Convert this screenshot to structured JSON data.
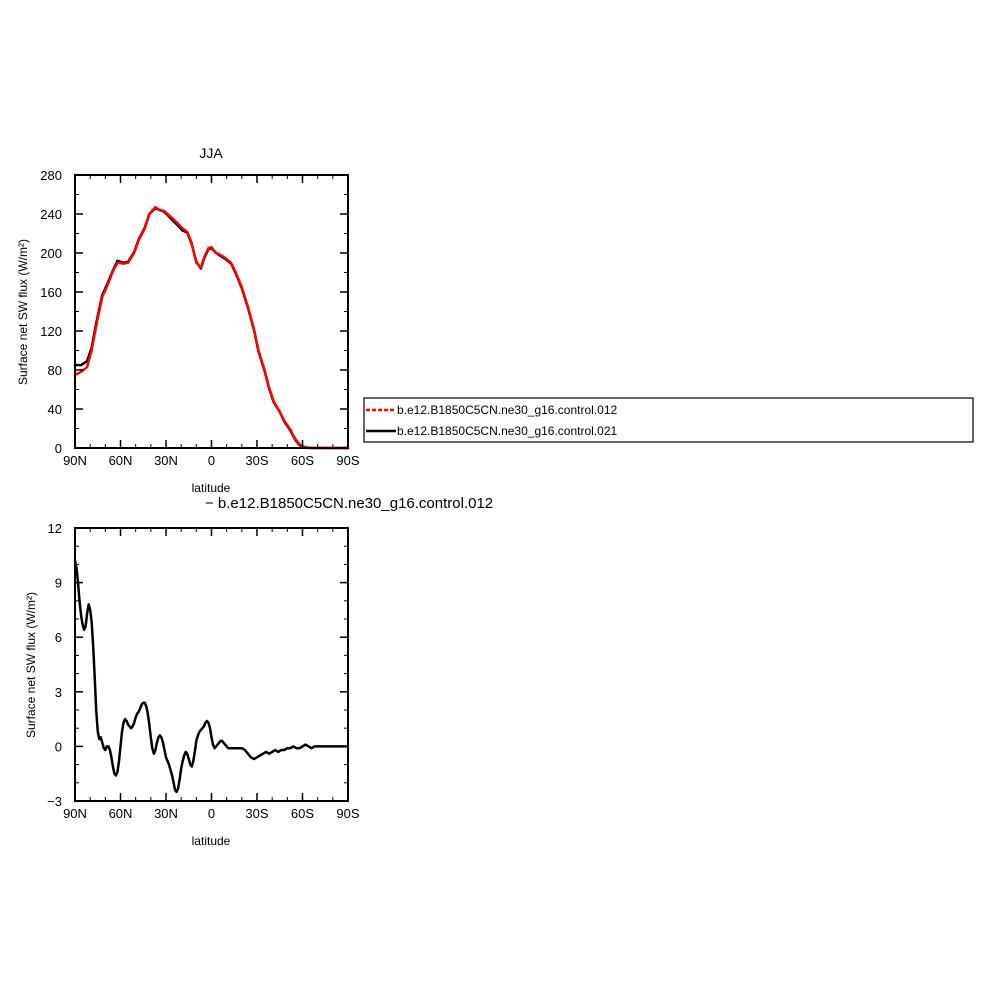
{
  "chart_data": [
    {
      "type": "line",
      "title": "JJA",
      "xlabel": "latitude",
      "ylabel": "Surface net SW flux (W/m²)",
      "xlim": [
        90,
        -90
      ],
      "ylim": [
        0,
        280
      ],
      "x_ticks": [
        {
          "value": 90,
          "label": "90N"
        },
        {
          "value": 60,
          "label": "60N"
        },
        {
          "value": 30,
          "label": "30N"
        },
        {
          "value": 0,
          "label": "0"
        },
        {
          "value": -30,
          "label": "30S"
        },
        {
          "value": -60,
          "label": "60S"
        },
        {
          "value": -90,
          "label": "90S"
        }
      ],
      "y_ticks": [
        {
          "value": 0,
          "label": "0"
        },
        {
          "value": 40,
          "label": "40"
        },
        {
          "value": 80,
          "label": "80"
        },
        {
          "value": 120,
          "label": "120"
        },
        {
          "value": 160,
          "label": "160"
        },
        {
          "value": 200,
          "label": "200"
        },
        {
          "value": 240,
          "label": "240"
        },
        {
          "value": 280,
          "label": "280"
        }
      ],
      "x": [
        90,
        86,
        82,
        79,
        76,
        72,
        69,
        65,
        62,
        58,
        55,
        51,
        48,
        44,
        41,
        37,
        34,
        31,
        29,
        26,
        22,
        19,
        16,
        13,
        10,
        7,
        5,
        2,
        0,
        -3,
        -6,
        -9,
        -13,
        -16,
        -20,
        -24,
        -28,
        -31,
        -35,
        -38,
        -41,
        -45,
        -48,
        -52,
        -55,
        -58,
        -61,
        -63,
        -65,
        -67,
        -69,
        -72,
        -75,
        -90
      ],
      "series": [
        {
          "name": "b.e12.B1850C5CN.ne30_g16.control.012",
          "color": "#ff0000",
          "dashed": true,
          "values": [
            75,
            78,
            83,
            100,
            125,
            155,
            165,
            181,
            190,
            189,
            190,
            200,
            213,
            225,
            240,
            247,
            244,
            243,
            240,
            236,
            230,
            225,
            222,
            210,
            190,
            185,
            195,
            205,
            206,
            200,
            198,
            195,
            190,
            180,
            165,
            145,
            122,
            100,
            80,
            62,
            48,
            37,
            28,
            19,
            10,
            4,
            1,
            0.5,
            0,
            0,
            0,
            0,
            0,
            0
          ]
        },
        {
          "name": "b.e12.B1850C5CN.ne30_g16.control.021",
          "color": "#000000",
          "dashed": false,
          "values": [
            85,
            85,
            89,
            103,
            128,
            157,
            167,
            182,
            192,
            190,
            191,
            201,
            214,
            226,
            240,
            246,
            244,
            242,
            239,
            234,
            228,
            223,
            221,
            209,
            191,
            184,
            194,
            204,
            205,
            200,
            197,
            194,
            189,
            179,
            164,
            144,
            121,
            99,
            79,
            61,
            47,
            37,
            27,
            18,
            9,
            3,
            1,
            0.5,
            0,
            0,
            0,
            0,
            0,
            0
          ]
        }
      ],
      "legend": {
        "placement": "right",
        "entries": [
          "b.e12.B1850C5CN.ne30_g16.control.012",
          "b.e12.B1850C5CN.ne30_g16.control.021"
        ]
      },
      "grid": false
    },
    {
      "type": "line",
      "title": "",
      "subtitle": "− b.e12.B1850C5CN.ne30_g16.control.012",
      "xlabel": "latitude",
      "ylabel": "Surface net SW flux (W/m²)",
      "xlim": [
        90,
        -90
      ],
      "ylim": [
        -3,
        12
      ],
      "x_ticks": [
        {
          "value": 90,
          "label": "90N"
        },
        {
          "value": 60,
          "label": "60N"
        },
        {
          "value": 30,
          "label": "30N"
        },
        {
          "value": 0,
          "label": "0"
        },
        {
          "value": -30,
          "label": "30S"
        },
        {
          "value": -60,
          "label": "60S"
        },
        {
          "value": -90,
          "label": "90S"
        }
      ],
      "y_ticks": [
        {
          "value": -3,
          "label": "−3"
        },
        {
          "value": 0,
          "label": "0"
        },
        {
          "value": 3,
          "label": "3"
        },
        {
          "value": 6,
          "label": "6"
        },
        {
          "value": 9,
          "label": "9"
        },
        {
          "value": 12,
          "label": "12"
        }
      ],
      "x": [
        90,
        89,
        88,
        87,
        86,
        85,
        84,
        83,
        82,
        81,
        80,
        79,
        78,
        77,
        76,
        75,
        74,
        73,
        72,
        71,
        70,
        69,
        68,
        67,
        66,
        65,
        64,
        63,
        62,
        61,
        60,
        59,
        58,
        57,
        56,
        55,
        54,
        53,
        52,
        51,
        50,
        49,
        48,
        47,
        46,
        45,
        44,
        43,
        42,
        41,
        40,
        39,
        38,
        37,
        36,
        35,
        34,
        33,
        32,
        31,
        30,
        29,
        28,
        27,
        26,
        25,
        24,
        23,
        22,
        21,
        20,
        19,
        18,
        17,
        16,
        15,
        14,
        13,
        12,
        11,
        10,
        9,
        8,
        7,
        6,
        5,
        4,
        3,
        2,
        1,
        0,
        -1,
        -2,
        -3,
        -4,
        -5,
        -6,
        -7,
        -8,
        -9,
        -10,
        -11,
        -12,
        -13,
        -14,
        -15,
        -16,
        -17,
        -18,
        -19,
        -20,
        -22,
        -24,
        -26,
        -28,
        -30,
        -32,
        -34,
        -36,
        -38,
        -40,
        -42,
        -44,
        -46,
        -48,
        -50,
        -52,
        -54,
        -56,
        -58,
        -60,
        -62,
        -64,
        -66,
        -68,
        -70,
        -75,
        -80,
        -85,
        -90
      ],
      "series": [
        {
          "name": "",
          "color": "#000000",
          "values": [
            10.2,
            9.8,
            9.0,
            8.0,
            7.2,
            6.7,
            6.4,
            6.6,
            7.3,
            7.8,
            7.5,
            6.8,
            5.5,
            3.8,
            2.0,
            0.8,
            0.4,
            0.5,
            0.2,
            -0.1,
            -0.2,
            0.0,
            0.0,
            -0.2,
            -0.6,
            -1.1,
            -1.5,
            -1.6,
            -1.4,
            -0.8,
            0.0,
            0.8,
            1.3,
            1.5,
            1.4,
            1.2,
            1.1,
            1.0,
            1.1,
            1.3,
            1.6,
            1.8,
            1.9,
            2.1,
            2.3,
            2.4,
            2.4,
            2.2,
            1.8,
            1.2,
            0.5,
            -0.1,
            -0.4,
            -0.2,
            0.2,
            0.5,
            0.6,
            0.5,
            0.2,
            -0.2,
            -0.6,
            -0.8,
            -1.0,
            -1.3,
            -1.6,
            -2.0,
            -2.4,
            -2.5,
            -2.3,
            -1.8,
            -1.2,
            -0.8,
            -0.5,
            -0.3,
            -0.4,
            -0.7,
            -1.0,
            -1.1,
            -0.8,
            -0.3,
            0.3,
            0.6,
            0.8,
            0.9,
            1.0,
            1.1,
            1.3,
            1.4,
            1.3,
            1.0,
            0.5,
            0.1,
            -0.1,
            0.0,
            0.1,
            0.2,
            0.3,
            0.3,
            0.2,
            0.1,
            0.0,
            -0.1,
            -0.1,
            -0.1,
            -0.1,
            -0.1,
            -0.1,
            -0.1,
            -0.1,
            -0.1,
            -0.1,
            -0.2,
            -0.4,
            -0.6,
            -0.7,
            -0.6,
            -0.5,
            -0.4,
            -0.3,
            -0.4,
            -0.3,
            -0.2,
            -0.3,
            -0.2,
            -0.2,
            -0.1,
            -0.1,
            0.0,
            -0.1,
            -0.1,
            0.0,
            0.1,
            0.0,
            -0.1,
            0.0,
            0.0,
            0.0,
            0.0,
            0.0,
            0.0
          ]
        }
      ],
      "grid": false
    }
  ]
}
